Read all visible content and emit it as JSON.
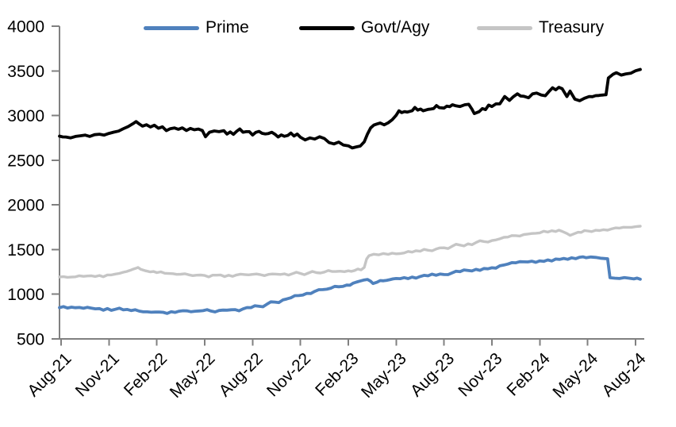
{
  "chart_data": {
    "type": "line",
    "title": "",
    "x_unit": "months since Aug-2021 (tick spacing = 3 months)",
    "x_tick_months": [
      0,
      3,
      6,
      9,
      12,
      15,
      18,
      21,
      24,
      27,
      30,
      33,
      36
    ],
    "x_tick_labels": [
      "Aug-21",
      "Nov-21",
      "Feb-22",
      "May-22",
      "Aug-22",
      "Nov-22",
      "Feb-23",
      "May-23",
      "Aug-23",
      "Nov-23",
      "Feb-24",
      "May-24",
      "Aug-24"
    ],
    "ylim": [
      500,
      4000
    ],
    "y_ticks": [
      500,
      1000,
      1500,
      2000,
      2500,
      3000,
      3500,
      4000
    ],
    "grid": false,
    "legend_position": "top",
    "axis_color": "#808080",
    "legend": [
      {
        "label": "Prime",
        "color": "#4F81BD"
      },
      {
        "label": "Govt/Agy",
        "color": "#000000"
      },
      {
        "label": "Treasury",
        "color": "#C5C5C5"
      }
    ],
    "series": [
      {
        "name": "Prime",
        "color": "#4F81BD",
        "points": [
          [
            -0.1,
            850
          ],
          [
            0.4,
            846
          ],
          [
            0.9,
            849
          ],
          [
            1.4,
            843
          ],
          [
            1.9,
            845
          ],
          [
            2.4,
            839
          ],
          [
            2.9,
            839
          ],
          [
            3.4,
            831
          ],
          [
            3.9,
            825
          ],
          [
            4.4,
            817
          ],
          [
            4.9,
            811
          ],
          [
            5.4,
            803
          ],
          [
            5.9,
            800
          ],
          [
            6.4,
            798
          ],
          [
            6.9,
            804
          ],
          [
            7.4,
            810
          ],
          [
            7.9,
            814
          ],
          [
            8.4,
            810
          ],
          [
            8.9,
            816
          ],
          [
            9.4,
            812
          ],
          [
            9.9,
            818
          ],
          [
            10.4,
            822
          ],
          [
            10.9,
            828
          ],
          [
            11.4,
            836
          ],
          [
            11.9,
            850
          ],
          [
            12.4,
            865
          ],
          [
            12.9,
            888
          ],
          [
            13.4,
            912
          ],
          [
            13.9,
            936
          ],
          [
            14.4,
            960
          ],
          [
            14.9,
            985
          ],
          [
            15.4,
            1010
          ],
          [
            15.9,
            1032
          ],
          [
            16.4,
            1052
          ],
          [
            16.9,
            1068
          ],
          [
            17.4,
            1084
          ],
          [
            17.9,
            1102
          ],
          [
            18.3,
            1124
          ],
          [
            18.7,
            1146
          ],
          [
            19.0,
            1160
          ],
          [
            19.2,
            1165
          ],
          [
            19.4,
            1146
          ],
          [
            19.55,
            1120
          ],
          [
            19.8,
            1134
          ],
          [
            20.2,
            1150
          ],
          [
            20.6,
            1163
          ],
          [
            21.0,
            1176
          ],
          [
            21.5,
            1186
          ],
          [
            22.0,
            1192
          ],
          [
            22.5,
            1198
          ],
          [
            23.0,
            1206
          ],
          [
            23.5,
            1212
          ],
          [
            24.0,
            1220
          ],
          [
            24.5,
            1238
          ],
          [
            25.0,
            1252
          ],
          [
            25.5,
            1266
          ],
          [
            26.0,
            1278
          ],
          [
            26.5,
            1288
          ],
          [
            27.0,
            1296
          ],
          [
            27.5,
            1318
          ],
          [
            28.0,
            1338
          ],
          [
            28.5,
            1352
          ],
          [
            29.0,
            1363
          ],
          [
            29.5,
            1370
          ],
          [
            30.0,
            1373
          ],
          [
            30.5,
            1384
          ],
          [
            31.0,
            1394
          ],
          [
            31.5,
            1401
          ],
          [
            32.0,
            1408
          ],
          [
            32.5,
            1414
          ],
          [
            32.9,
            1409
          ],
          [
            33.2,
            1417
          ],
          [
            33.5,
            1412
          ],
          [
            33.8,
            1403
          ],
          [
            34.1,
            1399
          ],
          [
            34.25,
            1397
          ],
          [
            34.4,
            1185
          ],
          [
            34.7,
            1180
          ],
          [
            35.0,
            1176
          ],
          [
            35.3,
            1186
          ],
          [
            35.6,
            1180
          ],
          [
            35.9,
            1172
          ],
          [
            36.3,
            1168
          ]
        ]
      },
      {
        "name": "Govt/Agy",
        "color": "#000000",
        "points": [
          [
            -0.1,
            2770
          ],
          [
            0.3,
            2760
          ],
          [
            0.6,
            2750
          ],
          [
            0.9,
            2766
          ],
          [
            1.2,
            2773
          ],
          [
            1.5,
            2781
          ],
          [
            1.8,
            2766
          ],
          [
            2.1,
            2786
          ],
          [
            2.4,
            2791
          ],
          [
            2.7,
            2781
          ],
          [
            3.0,
            2800
          ],
          [
            3.3,
            2814
          ],
          [
            3.6,
            2826
          ],
          [
            3.9,
            2852
          ],
          [
            4.2,
            2876
          ],
          [
            4.5,
            2908
          ],
          [
            4.7,
            2932
          ],
          [
            4.9,
            2906
          ],
          [
            5.1,
            2882
          ],
          [
            5.35,
            2897
          ],
          [
            5.6,
            2872
          ],
          [
            5.85,
            2891
          ],
          [
            6.1,
            2858
          ],
          [
            6.35,
            2874
          ],
          [
            6.6,
            2831
          ],
          [
            6.85,
            2853
          ],
          [
            7.1,
            2861
          ],
          [
            7.35,
            2846
          ],
          [
            7.6,
            2862
          ],
          [
            7.85,
            2833
          ],
          [
            8.1,
            2856
          ],
          [
            8.35,
            2841
          ],
          [
            8.6,
            2849
          ],
          [
            8.85,
            2833
          ],
          [
            9.05,
            2763
          ],
          [
            9.3,
            2813
          ],
          [
            9.6,
            2827
          ],
          [
            9.9,
            2819
          ],
          [
            10.2,
            2831
          ],
          [
            10.6,
            2817
          ],
          [
            11.0,
            2823
          ],
          [
            11.4,
            2813
          ],
          [
            11.8,
            2819
          ],
          [
            12.2,
            2811
          ],
          [
            12.6,
            2801
          ],
          [
            13.0,
            2799
          ],
          [
            13.4,
            2791
          ],
          [
            13.8,
            2783
          ],
          [
            14.2,
            2777
          ],
          [
            14.6,
            2771
          ],
          [
            15.0,
            2757
          ],
          [
            15.3,
            2727
          ],
          [
            15.6,
            2749
          ],
          [
            15.9,
            2737
          ],
          [
            16.2,
            2763
          ],
          [
            16.5,
            2743
          ],
          [
            16.8,
            2697
          ],
          [
            17.1,
            2683
          ],
          [
            17.4,
            2703
          ],
          [
            17.7,
            2669
          ],
          [
            18.0,
            2661
          ],
          [
            18.25,
            2637
          ],
          [
            18.5,
            2649
          ],
          [
            18.75,
            2659
          ],
          [
            19.0,
            2706
          ],
          [
            19.2,
            2792
          ],
          [
            19.4,
            2861
          ],
          [
            19.6,
            2893
          ],
          [
            19.8,
            2906
          ],
          [
            20.0,
            2916
          ],
          [
            20.25,
            2896
          ],
          [
            20.5,
            2919
          ],
          [
            20.75,
            2953
          ],
          [
            21.0,
            3003
          ],
          [
            21.35,
            3033
          ],
          [
            21.7,
            3039
          ],
          [
            22.0,
            3053
          ],
          [
            22.35,
            3061
          ],
          [
            22.7,
            3053
          ],
          [
            23.0,
            3069
          ],
          [
            23.35,
            3079
          ],
          [
            23.7,
            3089
          ],
          [
            24.0,
            3083
          ],
          [
            24.35,
            3099
          ],
          [
            24.7,
            3111
          ],
          [
            25.0,
            3101
          ],
          [
            25.3,
            3121
          ],
          [
            25.55,
            3126
          ],
          [
            25.75,
            3072
          ],
          [
            25.9,
            3022
          ],
          [
            26.2,
            3043
          ],
          [
            26.6,
            3066
          ],
          [
            27.0,
            3101
          ],
          [
            27.5,
            3131
          ],
          [
            27.8,
            3213
          ],
          [
            28.1,
            3169
          ],
          [
            28.6,
            3243
          ],
          [
            29.0,
            3216
          ],
          [
            29.3,
            3199
          ],
          [
            29.8,
            3251
          ],
          [
            30.1,
            3229
          ],
          [
            30.6,
            3273
          ],
          [
            31.0,
            3288
          ],
          [
            31.4,
            3301
          ],
          [
            31.7,
            3213
          ],
          [
            31.9,
            3273
          ],
          [
            32.2,
            3184
          ],
          [
            32.5,
            3166
          ],
          [
            32.8,
            3193
          ],
          [
            33.1,
            3213
          ],
          [
            33.5,
            3223
          ],
          [
            33.9,
            3229
          ],
          [
            34.15,
            3233
          ],
          [
            34.3,
            3421
          ],
          [
            34.6,
            3463
          ],
          [
            34.8,
            3479
          ],
          [
            35.1,
            3453
          ],
          [
            35.4,
            3466
          ],
          [
            35.7,
            3473
          ],
          [
            36.0,
            3501
          ],
          [
            36.3,
            3516
          ]
        ]
      },
      {
        "name": "Treasury",
        "color": "#C5C5C5",
        "points": [
          [
            -0.1,
            1193
          ],
          [
            0.4,
            1189
          ],
          [
            0.9,
            1195
          ],
          [
            1.4,
            1200
          ],
          [
            1.9,
            1206
          ],
          [
            2.4,
            1210
          ],
          [
            2.9,
            1216
          ],
          [
            3.4,
            1226
          ],
          [
            3.9,
            1246
          ],
          [
            4.3,
            1266
          ],
          [
            4.65,
            1288
          ],
          [
            5.0,
            1278
          ],
          [
            5.3,
            1262
          ],
          [
            5.6,
            1250
          ],
          [
            6.0,
            1242
          ],
          [
            6.5,
            1235
          ],
          [
            7.0,
            1230
          ],
          [
            7.5,
            1224
          ],
          [
            8.0,
            1218
          ],
          [
            8.5,
            1213
          ],
          [
            9.0,
            1210
          ],
          [
            9.5,
            1213
          ],
          [
            10.0,
            1216
          ],
          [
            10.5,
            1212
          ],
          [
            11.0,
            1216
          ],
          [
            11.5,
            1220
          ],
          [
            12.0,
            1222
          ],
          [
            12.5,
            1219
          ],
          [
            13.0,
            1222
          ],
          [
            13.5,
            1225
          ],
          [
            14.0,
            1228
          ],
          [
            14.5,
            1230
          ],
          [
            15.0,
            1233
          ],
          [
            15.5,
            1237
          ],
          [
            16.0,
            1242
          ],
          [
            16.5,
            1248
          ],
          [
            17.0,
            1254
          ],
          [
            17.5,
            1258
          ],
          [
            18.0,
            1262
          ],
          [
            18.4,
            1266
          ],
          [
            18.8,
            1272
          ],
          [
            19.0,
            1300
          ],
          [
            19.15,
            1395
          ],
          [
            19.3,
            1432
          ],
          [
            19.6,
            1448
          ],
          [
            19.9,
            1441
          ],
          [
            20.2,
            1456
          ],
          [
            20.5,
            1446
          ],
          [
            21.0,
            1452
          ],
          [
            21.5,
            1462
          ],
          [
            22.0,
            1471
          ],
          [
            22.5,
            1481
          ],
          [
            23.0,
            1492
          ],
          [
            23.5,
            1506
          ],
          [
            24.0,
            1520
          ],
          [
            24.5,
            1536
          ],
          [
            25.0,
            1550
          ],
          [
            25.5,
            1564
          ],
          [
            26.0,
            1578
          ],
          [
            26.5,
            1590
          ],
          [
            27.0,
            1601
          ],
          [
            27.5,
            1620
          ],
          [
            28.0,
            1640
          ],
          [
            28.5,
            1656
          ],
          [
            29.0,
            1668
          ],
          [
            29.5,
            1680
          ],
          [
            30.0,
            1687
          ],
          [
            30.5,
            1696
          ],
          [
            31.0,
            1702
          ],
          [
            31.4,
            1704
          ],
          [
            31.7,
            1680
          ],
          [
            31.9,
            1658
          ],
          [
            32.2,
            1680
          ],
          [
            32.6,
            1692
          ],
          [
            33.0,
            1708
          ],
          [
            33.5,
            1716
          ],
          [
            34.0,
            1722
          ],
          [
            34.5,
            1731
          ],
          [
            35.0,
            1740
          ],
          [
            35.5,
            1749
          ],
          [
            36.0,
            1756
          ],
          [
            36.3,
            1761
          ]
        ]
      }
    ]
  }
}
